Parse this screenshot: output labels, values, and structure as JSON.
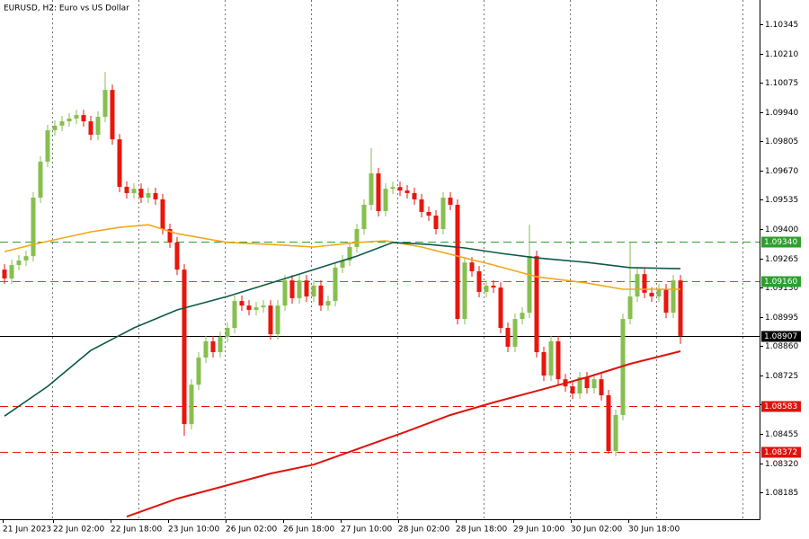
{
  "chart_data": {
    "type": "candlestick",
    "title": "EURUSD, H2:  Euro vs US Dollar",
    "categories": [
      "21 Jun 2023",
      null,
      null,
      null,
      null,
      null,
      null,
      "22 Jun 02:00",
      null,
      null,
      null,
      null,
      null,
      null,
      null,
      "22 Jun 18:00",
      null,
      null,
      null,
      null,
      null,
      null,
      null,
      "23 Jun 10:00",
      null,
      null,
      null,
      null,
      null,
      null,
      null,
      "26 Jun 02:00",
      null,
      null,
      null,
      null,
      null,
      null,
      null,
      "26 Jun 18:00",
      null,
      null,
      null,
      null,
      null,
      null,
      null,
      "27 Jun 10:00",
      null,
      null,
      null,
      null,
      null,
      null,
      null,
      "28 Jun 02:00",
      null,
      null,
      null,
      null,
      null,
      null,
      null,
      "28 Jun 18:00",
      null,
      null,
      null,
      null,
      null,
      null,
      null,
      "29 Jun 10:00",
      null,
      null,
      null,
      null,
      null,
      null,
      null,
      "30 Jun 02:00",
      null,
      null,
      null,
      null,
      null,
      null,
      null,
      "30 Jun 18:00",
      null,
      null,
      null,
      null,
      null,
      null,
      null
    ],
    "open": [
      1.09213,
      1.09172,
      1.09234,
      1.09255,
      1.09275,
      1.09545,
      1.09711,
      1.09856,
      1.09877,
      1.09897,
      1.0991,
      1.09926,
      1.09897,
      1.09835,
      1.09918,
      1.10042,
      1.09814,
      1.09595,
      1.09566,
      1.09586,
      1.09545,
      1.09566,
      1.09537,
      1.094,
      1.09338,
      1.09213,
      1.085,
      1.08682,
      1.08807,
      1.08882,
      1.08832,
      1.08902,
      1.08944,
      1.09068,
      1.09047,
      1.09027,
      1.09039,
      1.09047,
      1.08915,
      1.09047,
      1.09163,
      1.09081,
      1.09163,
      1.09089,
      1.09139,
      1.09047,
      1.09068,
      1.09222,
      1.09255,
      1.09317,
      1.094,
      1.09512,
      1.09657,
      1.09483,
      1.09586,
      1.09594,
      1.09578,
      1.09566,
      1.09537,
      1.09479,
      1.09462,
      1.094,
      1.09545,
      1.09512,
      1.08985,
      1.09246,
      1.09205,
      1.0911,
      1.09139,
      1.0913,
      1.08944,
      1.08857,
      1.08985,
      1.09014,
      1.09275,
      1.08832,
      1.08724,
      1.08882,
      1.08707,
      1.08674,
      1.08641,
      1.08716,
      1.08666,
      1.08707,
      1.08633,
      1.08376,
      1.08542,
      1.08985,
      1.09089,
      1.09192,
      1.09106,
      1.09089,
      1.09122,
      1.09014,
      1.09163
    ],
    "high": [
      1.09238,
      1.09259,
      1.0928,
      1.093,
      1.0957,
      1.09736,
      1.09881,
      1.09902,
      1.09922,
      1.09935,
      1.09951,
      1.09951,
      1.09922,
      1.09943,
      1.10125,
      1.10067,
      1.09839,
      1.0962,
      1.09611,
      1.09611,
      1.09591,
      1.09591,
      1.09562,
      1.09425,
      1.09363,
      1.09238,
      1.08707,
      1.08832,
      1.08907,
      1.08907,
      1.08927,
      1.08969,
      1.09093,
      1.09093,
      1.09072,
      1.09064,
      1.09072,
      1.09072,
      1.09072,
      1.09188,
      1.09188,
      1.09188,
      1.09188,
      1.09164,
      1.09164,
      1.09093,
      1.09247,
      1.0928,
      1.09342,
      1.09425,
      1.09537,
      1.09773,
      1.09682,
      1.09611,
      1.09619,
      1.09619,
      1.09603,
      1.09591,
      1.09562,
      1.09504,
      1.09487,
      1.0957,
      1.0957,
      1.09537,
      1.09271,
      1.09271,
      1.0923,
      1.09164,
      1.09164,
      1.09155,
      1.08969,
      1.0901,
      1.09039,
      1.0942,
      1.093,
      1.08857,
      1.08907,
      1.08907,
      1.08732,
      1.08699,
      1.08741,
      1.08741,
      1.08732,
      1.08732,
      1.08658,
      1.08567,
      1.0901,
      1.09338,
      1.09217,
      1.09217,
      1.09131,
      1.09147,
      1.09147,
      1.09188,
      1.09188
    ],
    "low": [
      1.09147,
      1.09147,
      1.09209,
      1.0923,
      1.0925,
      1.0952,
      1.09686,
      1.09831,
      1.09852,
      1.09872,
      1.09885,
      1.09872,
      1.0981,
      1.0981,
      1.09893,
      1.09789,
      1.0957,
      1.09541,
      1.09541,
      1.0952,
      1.0952,
      1.09512,
      1.09375,
      1.09313,
      1.09188,
      1.08446,
      1.08475,
      1.08657,
      1.08782,
      1.08807,
      1.08807,
      1.08877,
      1.08919,
      1.09022,
      1.09002,
      1.09002,
      1.09014,
      1.0889,
      1.0889,
      1.09022,
      1.09056,
      1.09056,
      1.09064,
      1.09064,
      1.09022,
      1.09022,
      1.09043,
      1.09197,
      1.0923,
      1.09292,
      1.09375,
      1.09487,
      1.09458,
      1.09458,
      1.09561,
      1.09553,
      1.09541,
      1.09512,
      1.09454,
      1.09437,
      1.09375,
      1.09375,
      1.09487,
      1.0896,
      1.0896,
      1.0918,
      1.09085,
      1.09085,
      1.09105,
      1.08919,
      1.08832,
      1.08832,
      1.0896,
      1.08989,
      1.08807,
      1.08699,
      1.08699,
      1.08682,
      1.08649,
      1.08616,
      1.08616,
      1.08641,
      1.08641,
      1.08608,
      1.08363,
      1.08351,
      1.08517,
      1.0896,
      1.09064,
      1.09081,
      1.09064,
      1.09064,
      1.08989,
      1.08989,
      1.0887
    ],
    "close": [
      1.09172,
      1.09234,
      1.09255,
      1.09275,
      1.09545,
      1.09711,
      1.09856,
      1.09877,
      1.09897,
      1.0991,
      1.09926,
      1.09897,
      1.09835,
      1.09918,
      1.10042,
      1.09814,
      1.09595,
      1.09566,
      1.09586,
      1.09545,
      1.09566,
      1.09537,
      1.094,
      1.09338,
      1.09213,
      1.085,
      1.08682,
      1.08807,
      1.08882,
      1.08832,
      1.08902,
      1.08944,
      1.09068,
      1.09047,
      1.09027,
      1.09039,
      1.09047,
      1.08915,
      1.09047,
      1.09163,
      1.09081,
      1.09163,
      1.09089,
      1.09139,
      1.09047,
      1.09068,
      1.09222,
      1.09255,
      1.09317,
      1.094,
      1.09512,
      1.09657,
      1.09483,
      1.09586,
      1.09594,
      1.09578,
      1.09566,
      1.09537,
      1.09479,
      1.09462,
      1.094,
      1.09545,
      1.09512,
      1.08985,
      1.09246,
      1.09205,
      1.0911,
      1.09139,
      1.0913,
      1.08944,
      1.08857,
      1.08985,
      1.09014,
      1.09275,
      1.08832,
      1.08724,
      1.08882,
      1.08707,
      1.08674,
      1.08641,
      1.08716,
      1.08666,
      1.08707,
      1.08633,
      1.08376,
      1.08542,
      1.08985,
      1.09089,
      1.09192,
      1.09106,
      1.09089,
      1.09122,
      1.09014,
      1.09163,
      1.08907
    ],
    "up_color": "#86bf4e",
    "down_color": "#e8160c",
    "series": [
      {
        "color": "#f0a818",
        "x": [
          0,
          4,
          12,
          16,
          20,
          24,
          31,
          37,
          43,
          49,
          53,
          58,
          63,
          68,
          74,
          81,
          86,
          94
        ],
        "values": [
          1.09296,
          1.09329,
          1.09387,
          1.09408,
          1.0942,
          1.09379,
          1.09338,
          1.09329,
          1.09317,
          1.09338,
          1.09346,
          1.09317,
          1.09275,
          1.09234,
          1.0918,
          1.09151,
          1.09122,
          1.09122
        ]
      },
      {
        "color": "#0b5a48",
        "x": [
          0,
          6,
          12,
          18,
          24,
          31,
          37,
          43,
          49,
          54,
          59,
          64,
          69,
          74,
          81,
          87,
          94
        ],
        "values": [
          1.08537,
          1.08674,
          1.0884,
          1.08944,
          1.09027,
          1.09089,
          1.09151,
          1.09213,
          1.09275,
          1.09338,
          1.09329,
          1.09313,
          1.09288,
          1.09267,
          1.09246,
          1.09222,
          1.09217
        ]
      },
      {
        "color": "#e0120c",
        "x": [
          17,
          24,
          31,
          37,
          43,
          49,
          56,
          62,
          68,
          74,
          81,
          87,
          94
        ],
        "values": [
          1.08073,
          1.08156,
          1.08218,
          1.08272,
          1.08313,
          1.08384,
          1.08467,
          1.08542,
          1.086,
          1.08653,
          1.08716,
          1.08778,
          1.08836
        ]
      }
    ],
    "levels": [
      {
        "value": 1.0934,
        "label": "1.09340",
        "color": "#2e9e2e",
        "style": "dashed"
      },
      {
        "value": 1.0916,
        "label": "1.09160",
        "color": "#2e9e2e",
        "style": "dashed"
      },
      {
        "value": 1.08907,
        "label": "1.08907",
        "color": "#000000",
        "style": "solid"
      },
      {
        "value": 1.08583,
        "label": "1.08583",
        "color": "#e0120c",
        "style": "dashed"
      },
      {
        "value": 1.08372,
        "label": "1.08372",
        "color": "#e0120c",
        "style": "dashed"
      }
    ],
    "ylim": [
      1.08061,
      1.10457
    ],
    "yticks": [
      1.10345,
      {
        "value": 1.1021,
        "label": "1.10210"
      },
      1.10075,
      {
        "value": 1.0994,
        "label": "1.09940"
      },
      1.09805,
      {
        "value": 1.0967,
        "label": "1.09670"
      },
      1.09535,
      {
        "value": 1.094,
        "label": "1.09400"
      },
      1.09265,
      {
        "value": 1.0913,
        "label": "1.09130"
      },
      1.08995,
      {
        "value": 1.0886,
        "label": "1.08860"
      },
      1.08725,
      {
        "value": 1.0859,
        "label": "1.08590"
      },
      1.08455,
      {
        "value": 1.0832,
        "label": "1.08320"
      },
      1.08185
    ]
  }
}
